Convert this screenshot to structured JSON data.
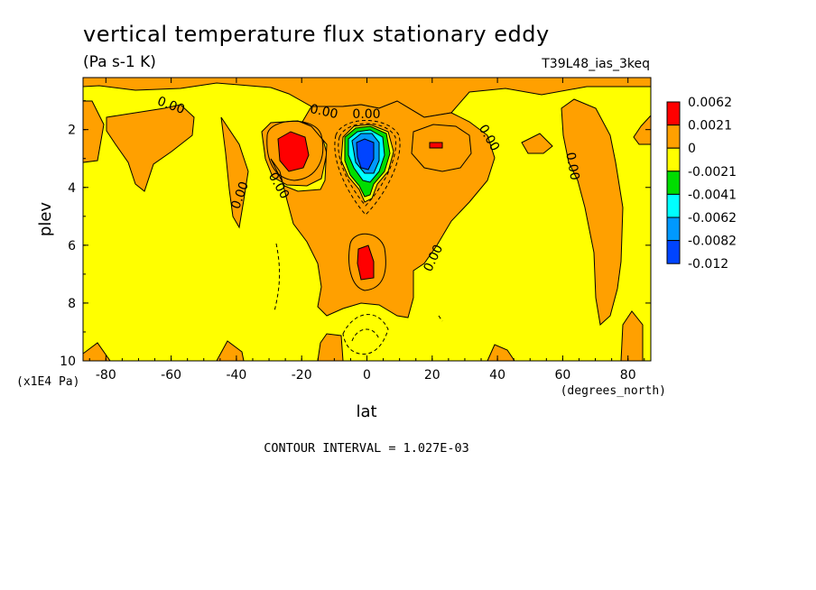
{
  "chart_data": {
    "type": "heatmap",
    "subtype": "filled-contour",
    "title": "vertical temperature flux stationary eddy",
    "units": "(Pa s-1 K)",
    "run_label": "T39L48_ias_3keq",
    "xlabel": "lat",
    "xunits": "(degrees_north)",
    "ylabel": "plev",
    "yunits": "(x1E4 Pa)",
    "x_ticks": [
      "-80",
      "-60",
      "-40",
      "-20",
      "0",
      "20",
      "40",
      "60",
      "80"
    ],
    "y_ticks": [
      "2",
      "4",
      "6",
      "8",
      "10"
    ],
    "xlim": [
      -87,
      87
    ],
    "ylim": [
      10,
      0.2
    ],
    "contour_interval_text": "CONTOUR INTERVAL = 1.027E-03",
    "legend": {
      "placement": "right",
      "levels": [
        "0.0062",
        "0.0021",
        "0",
        "-0.0021",
        "-0.0041",
        "-0.0062",
        "-0.0082",
        "-0.012"
      ],
      "colors": [
        "#ff0000",
        "#ffa000",
        "#ffff00",
        "#00dd00",
        "#00ffff",
        "#0099ff",
        "#0044ff"
      ]
    },
    "contour_labels": [
      "0.00",
      "0.00",
      "0.00",
      "0.00",
      "0.00",
      "0.00",
      "0.00",
      "0.00"
    ],
    "regions": [
      {
        "sign": "positive",
        "lat": [
          -10,
          30
        ],
        "plev": [
          0.2,
          1.2
        ]
      },
      {
        "sign": "positive",
        "lat": [
          -26,
          -17
        ],
        "plev": [
          2.0,
          3.6
        ]
      },
      {
        "sign": "negative",
        "lat": [
          -4,
          6
        ],
        "plev": [
          1.5,
          4.5
        ],
        "min": -0.012
      },
      {
        "sign": "positive",
        "lat": [
          -2,
          3
        ],
        "plev": [
          6.0,
          7.2
        ],
        "max": 0.0062
      },
      {
        "sign": "positive",
        "lat": [
          -15,
          25
        ],
        "plev": [
          3.5,
          8.5
        ]
      }
    ],
    "colors": {
      "positive_high": "#ff0000",
      "positive": "#ffa000",
      "background": "#ffff00"
    }
  }
}
